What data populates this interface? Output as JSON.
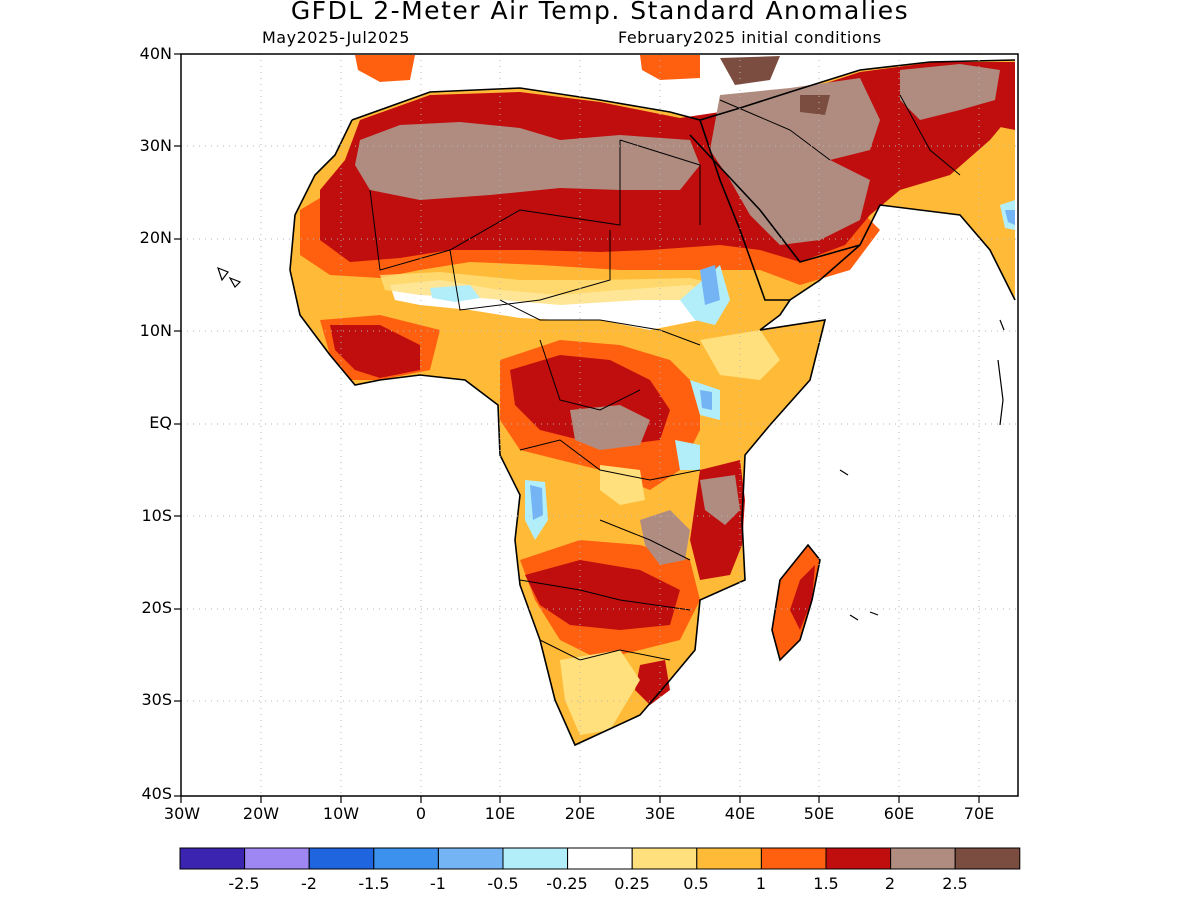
{
  "title": "GFDL 2-Meter Air Temp. Standard Anomalies",
  "subtitle_left": "May2025-Jul2025",
  "subtitle_right": "February2025 initial conditions",
  "lat_labels": [
    "40N",
    "30N",
    "20N",
    "10N",
    "EQ",
    "10S",
    "20S",
    "30S",
    "40S"
  ],
  "lon_labels": [
    "30W",
    "20W",
    "10W",
    "0",
    "10E",
    "20E",
    "30E",
    "40E",
    "50E",
    "60E",
    "70E"
  ],
  "colorbar": {
    "colors": [
      "#3b25b0",
      "#9f87f3",
      "#1f65e0",
      "#3b91ed",
      "#74b4f5",
      "#b2eefa",
      "#ffffff",
      "#ffe07c",
      "#ffbb38",
      "#ff6010",
      "#c00d0d",
      "#b08c80",
      "#7a4d40"
    ],
    "labels": [
      "-2.5",
      "-2",
      "-1.5",
      "-1",
      "-0.5",
      "-0.25",
      "0.25",
      "0.5",
      "1",
      "1.5",
      "2",
      "2.5"
    ]
  },
  "map": {
    "extent": {
      "lon_min": -30,
      "lon_max": 75,
      "lat_min": -40,
      "lat_max": 40
    },
    "grid": "dotted",
    "variable": "2-meter air temperature standard anomaly"
  }
}
